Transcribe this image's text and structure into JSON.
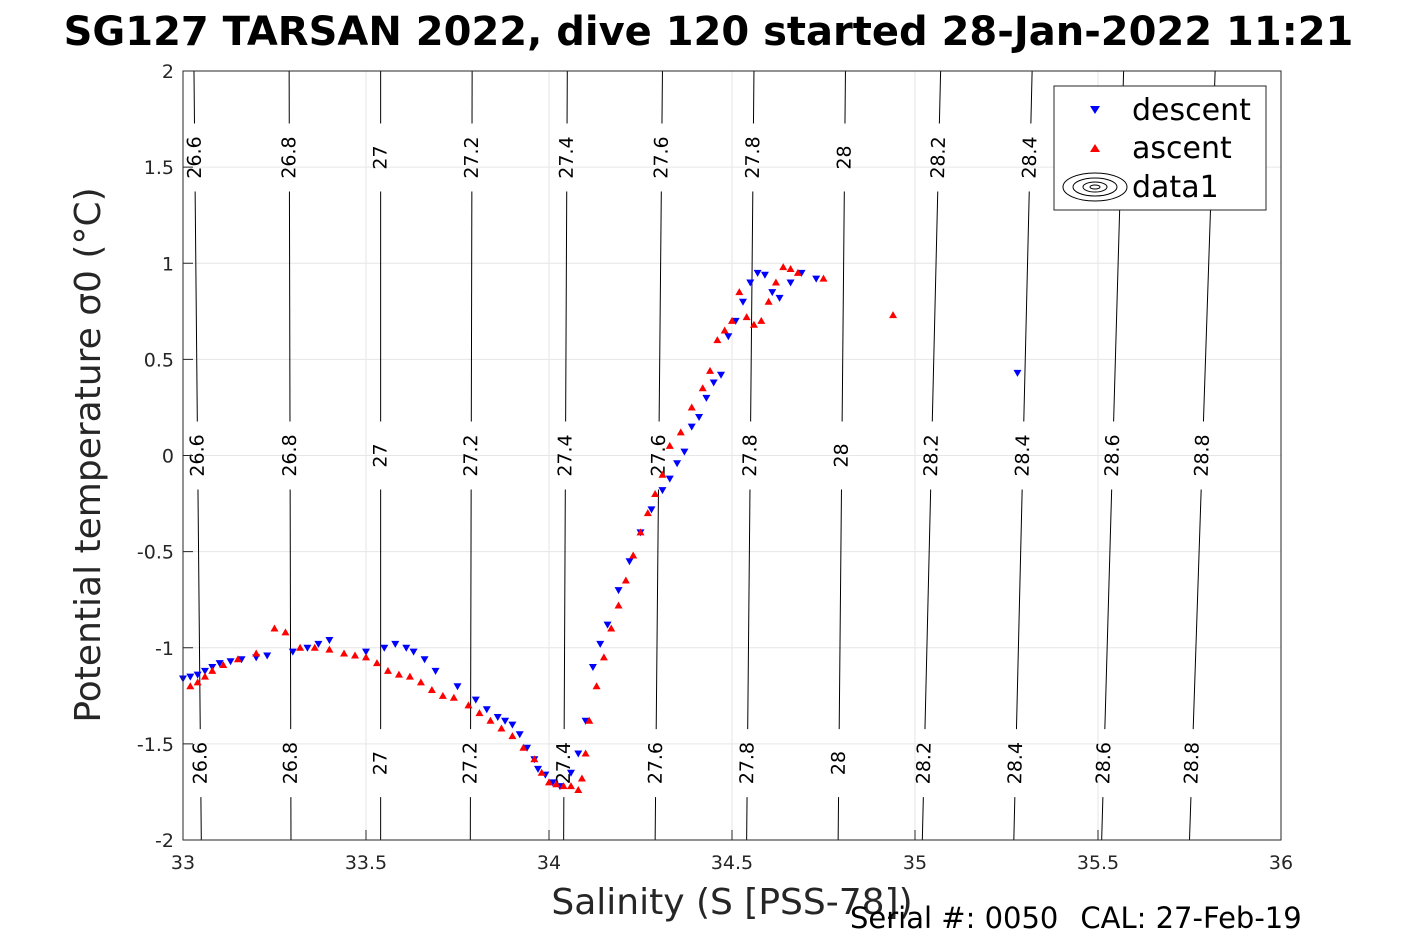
{
  "title": "SG127 TARSAN 2022, dive 120 started 28-Jan-2022 11:21",
  "footer": {
    "serial": "Serial #: 0050",
    "cal": "CAL: 27-Feb-19"
  },
  "chart_data": {
    "type": "scatter",
    "title": "SG127 TARSAN 2022, dive 120 started 28-Jan-2022 11:21",
    "xlabel": "Salinity (S [PSS-78])",
    "ylabel": "Potential temperature σ0 (°C)",
    "xlim": [
      33,
      36
    ],
    "ylim": [
      -2,
      2
    ],
    "xticks": [
      33,
      33.5,
      34,
      34.5,
      35,
      35.5,
      36
    ],
    "xtick_labels": [
      "33",
      "33.5",
      "34",
      "34.5",
      "35",
      "35.5",
      "36"
    ],
    "yticks": [
      -2,
      -1.5,
      -1,
      -0.5,
      0,
      0.5,
      1,
      1.5,
      2
    ],
    "ytick_labels": [
      "-2",
      "-1.5",
      "-1",
      "-0.5",
      "0",
      "0.5",
      "1",
      "1.5",
      "2"
    ],
    "grid": true,
    "legend": {
      "placement": "top-right",
      "entries": [
        "descent",
        "ascent",
        "data1"
      ]
    },
    "colors": {
      "descent": "#0000ff",
      "ascent": "#ff0000",
      "contour": "#000000",
      "grid": "#e6e6e6"
    },
    "contours": {
      "levels": [
        26.6,
        26.8,
        27.0,
        27.2,
        27.4,
        27.6,
        27.8,
        28.0,
        28.2,
        28.4,
        28.6,
        28.8
      ],
      "labels": [
        "26.6",
        "26.8",
        "27",
        "27.2",
        "27.4",
        "27.6",
        "27.8",
        "28",
        "28.2",
        "28.4",
        "28.6",
        "28.8"
      ],
      "salinity_at_minus2": [
        33.05,
        33.295,
        33.54,
        33.785,
        34.04,
        34.29,
        34.54,
        34.79,
        35.02,
        35.27,
        35.51,
        35.75
      ],
      "salinity_at_plus2": [
        33.03,
        33.29,
        33.54,
        33.79,
        34.05,
        34.31,
        34.56,
        34.81,
        35.07,
        35.32,
        35.57,
        35.82
      ]
    },
    "series": [
      {
        "name": "descent",
        "marker": "triangle-down",
        "x": [
          33.0,
          33.02,
          33.04,
          33.06,
          33.08,
          33.1,
          33.13,
          33.16,
          33.2,
          33.23,
          33.3,
          33.34,
          33.37,
          33.4,
          33.5,
          33.55,
          33.58,
          33.61,
          33.63,
          33.66,
          33.69,
          33.75,
          33.8,
          33.83,
          33.86,
          33.88,
          33.9,
          33.92,
          33.94,
          33.96,
          33.97,
          33.99,
          34.01,
          34.03,
          34.06,
          34.08,
          34.1,
          34.12,
          34.14,
          34.16,
          34.19,
          34.22,
          34.25,
          34.28,
          34.31,
          34.33,
          34.35,
          34.37,
          34.39,
          34.41,
          34.43,
          34.45,
          34.47,
          34.49,
          34.51,
          34.53,
          34.55,
          34.57,
          34.59,
          34.61,
          34.63,
          34.66,
          34.69,
          34.73,
          35.28
        ],
        "y": [
          -1.16,
          -1.15,
          -1.14,
          -1.12,
          -1.1,
          -1.08,
          -1.07,
          -1.06,
          -1.05,
          -1.04,
          -1.02,
          -1.0,
          -0.98,
          -0.96,
          -1.02,
          -1.0,
          -0.98,
          -1.0,
          -1.02,
          -1.06,
          -1.12,
          -1.2,
          -1.27,
          -1.32,
          -1.36,
          -1.38,
          -1.4,
          -1.45,
          -1.52,
          -1.58,
          -1.63,
          -1.66,
          -1.7,
          -1.72,
          -1.65,
          -1.55,
          -1.38,
          -1.1,
          -0.98,
          -0.88,
          -0.7,
          -0.55,
          -0.4,
          -0.28,
          -0.18,
          -0.12,
          -0.04,
          0.02,
          0.15,
          0.2,
          0.3,
          0.38,
          0.42,
          0.62,
          0.7,
          0.8,
          0.9,
          0.95,
          0.94,
          0.85,
          0.82,
          0.9,
          0.95,
          0.92,
          0.43
        ]
      },
      {
        "name": "ascent",
        "marker": "triangle-up",
        "x": [
          33.02,
          33.04,
          33.06,
          33.08,
          33.11,
          33.15,
          33.2,
          33.25,
          33.28,
          33.32,
          33.36,
          33.4,
          33.44,
          33.47,
          33.5,
          33.53,
          33.56,
          33.59,
          33.62,
          33.65,
          33.68,
          33.71,
          33.74,
          33.78,
          33.81,
          33.84,
          33.87,
          33.9,
          33.93,
          33.96,
          33.98,
          34.0,
          34.02,
          34.04,
          34.06,
          34.08,
          34.09,
          34.1,
          34.11,
          34.13,
          34.15,
          34.17,
          34.19,
          34.21,
          34.23,
          34.25,
          34.27,
          34.29,
          34.31,
          34.33,
          34.36,
          34.39,
          34.42,
          34.44,
          34.46,
          34.48,
          34.5,
          34.52,
          34.54,
          34.56,
          34.58,
          34.6,
          34.62,
          34.64,
          34.66,
          34.68,
          34.75,
          34.94
        ],
        "y": [
          -1.2,
          -1.18,
          -1.15,
          -1.12,
          -1.09,
          -1.06,
          -1.03,
          -0.9,
          -0.92,
          -1.0,
          -1.0,
          -1.01,
          -1.03,
          -1.04,
          -1.05,
          -1.08,
          -1.12,
          -1.14,
          -1.15,
          -1.18,
          -1.22,
          -1.25,
          -1.26,
          -1.3,
          -1.34,
          -1.38,
          -1.42,
          -1.46,
          -1.52,
          -1.58,
          -1.65,
          -1.7,
          -1.71,
          -1.72,
          -1.72,
          -1.74,
          -1.68,
          -1.55,
          -1.38,
          -1.2,
          -1.05,
          -0.9,
          -0.78,
          -0.65,
          -0.52,
          -0.4,
          -0.3,
          -0.2,
          -0.1,
          0.05,
          0.12,
          0.25,
          0.35,
          0.44,
          0.6,
          0.65,
          0.7,
          0.85,
          0.72,
          0.68,
          0.7,
          0.8,
          0.9,
          0.98,
          0.97,
          0.95,
          0.92,
          0.73
        ]
      }
    ]
  }
}
